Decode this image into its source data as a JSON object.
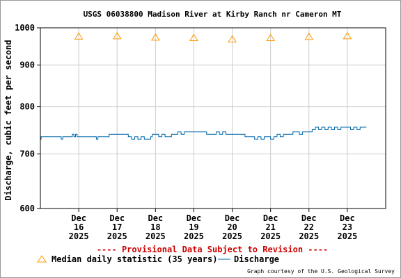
{
  "chart_data": {
    "type": "line",
    "title": "USGS 06038800 Madison River at Kirby Ranch nr Cameron MT",
    "ylabel": "Discharge, cubic feet per second",
    "xlabel": "",
    "y_scale": "log",
    "ylim": [
      600,
      1000
    ],
    "y_ticks": [
      {
        "value": 600,
        "label": "600"
      },
      {
        "value": 700,
        "label": "700"
      },
      {
        "value": 800,
        "label": "800"
      },
      {
        "value": 900,
        "label": "900"
      },
      {
        "value": 1000,
        "label": "1000"
      }
    ],
    "xlim": [
      "2025-12-15",
      "2025-12-24"
    ],
    "x_ticks": [
      {
        "date": "2025-12-16",
        "month": "Dec",
        "day": "16",
        "year": "2025"
      },
      {
        "date": "2025-12-17",
        "month": "Dec",
        "day": "17",
        "year": "2025"
      },
      {
        "date": "2025-12-18",
        "month": "Dec",
        "day": "18",
        "year": "2025"
      },
      {
        "date": "2025-12-19",
        "month": "Dec",
        "day": "19",
        "year": "2025"
      },
      {
        "date": "2025-12-20",
        "month": "Dec",
        "day": "20",
        "year": "2025"
      },
      {
        "date": "2025-12-21",
        "month": "Dec",
        "day": "21",
        "year": "2025"
      },
      {
        "date": "2025-12-22",
        "month": "Dec",
        "day": "22",
        "year": "2025"
      },
      {
        "date": "2025-12-23",
        "month": "Dec",
        "day": "23",
        "year": "2025"
      }
    ],
    "grid": true,
    "series": [
      {
        "name": "Median daily statistic (35 years)",
        "marker": "triangle",
        "color": "#ff9900",
        "points": [
          {
            "x": "2025-12-16",
            "y": 976
          },
          {
            "x": "2025-12-17",
            "y": 977
          },
          {
            "x": "2025-12-18",
            "y": 973
          },
          {
            "x": "2025-12-19",
            "y": 972
          },
          {
            "x": "2025-12-20",
            "y": 968
          },
          {
            "x": "2025-12-21",
            "y": 972
          },
          {
            "x": "2025-12-22",
            "y": 975
          },
          {
            "x": "2025-12-23",
            "y": 977
          }
        ]
      },
      {
        "name": "Discharge",
        "marker": "line",
        "color": "#0066aa",
        "points": [
          {
            "x": "2025-12-15 00:00",
            "y": 730
          },
          {
            "x": "2025-12-15 00:30",
            "y": 735
          },
          {
            "x": "2025-12-15 06:00",
            "y": 735
          },
          {
            "x": "2025-12-15 12:00",
            "y": 735
          },
          {
            "x": "2025-12-15 13:00",
            "y": 730
          },
          {
            "x": "2025-12-15 14:00",
            "y": 735
          },
          {
            "x": "2025-12-15 18:00",
            "y": 735
          },
          {
            "x": "2025-12-15 20:00",
            "y": 740
          },
          {
            "x": "2025-12-15 21:00",
            "y": 735
          },
          {
            "x": "2025-12-15 22:00",
            "y": 740
          },
          {
            "x": "2025-12-15 23:00",
            "y": 735
          },
          {
            "x": "2025-12-16 06:00",
            "y": 735
          },
          {
            "x": "2025-12-16 11:00",
            "y": 730
          },
          {
            "x": "2025-12-16 12:00",
            "y": 735
          },
          {
            "x": "2025-12-16 18:00",
            "y": 735
          },
          {
            "x": "2025-12-16 19:00",
            "y": 740
          },
          {
            "x": "2025-12-17 00:00",
            "y": 740
          },
          {
            "x": "2025-12-17 06:00",
            "y": 740
          },
          {
            "x": "2025-12-17 07:00",
            "y": 735
          },
          {
            "x": "2025-12-17 09:00",
            "y": 730
          },
          {
            "x": "2025-12-17 11:00",
            "y": 735
          },
          {
            "x": "2025-12-17 13:00",
            "y": 730
          },
          {
            "x": "2025-12-17 15:00",
            "y": 735
          },
          {
            "x": "2025-12-17 17:00",
            "y": 730
          },
          {
            "x": "2025-12-17 19:00",
            "y": 730
          },
          {
            "x": "2025-12-17 21:00",
            "y": 735
          },
          {
            "x": "2025-12-17 22:00",
            "y": 740
          },
          {
            "x": "2025-12-18 00:00",
            "y": 740
          },
          {
            "x": "2025-12-18 02:00",
            "y": 735
          },
          {
            "x": "2025-12-18 04:00",
            "y": 740
          },
          {
            "x": "2025-12-18 06:00",
            "y": 735
          },
          {
            "x": "2025-12-18 10:00",
            "y": 740
          },
          {
            "x": "2025-12-18 12:00",
            "y": 740
          },
          {
            "x": "2025-12-18 14:00",
            "y": 745
          },
          {
            "x": "2025-12-18 16:00",
            "y": 740
          },
          {
            "x": "2025-12-18 18:00",
            "y": 745
          },
          {
            "x": "2025-12-19 00:00",
            "y": 745
          },
          {
            "x": "2025-12-19 06:00",
            "y": 745
          },
          {
            "x": "2025-12-19 08:00",
            "y": 740
          },
          {
            "x": "2025-12-19 12:00",
            "y": 740
          },
          {
            "x": "2025-12-19 14:00",
            "y": 745
          },
          {
            "x": "2025-12-19 16:00",
            "y": 740
          },
          {
            "x": "2025-12-19 18:00",
            "y": 745
          },
          {
            "x": "2025-12-19 20:00",
            "y": 740
          },
          {
            "x": "2025-12-20 00:00",
            "y": 740
          },
          {
            "x": "2025-12-20 06:00",
            "y": 740
          },
          {
            "x": "2025-12-20 08:00",
            "y": 735
          },
          {
            "x": "2025-12-20 12:00",
            "y": 735
          },
          {
            "x": "2025-12-20 14:00",
            "y": 730
          },
          {
            "x": "2025-12-20 16:00",
            "y": 735
          },
          {
            "x": "2025-12-20 18:00",
            "y": 730
          },
          {
            "x": "2025-12-20 20:00",
            "y": 735
          },
          {
            "x": "2025-12-21 00:00",
            "y": 730
          },
          {
            "x": "2025-12-21 02:00",
            "y": 735
          },
          {
            "x": "2025-12-21 04:00",
            "y": 740
          },
          {
            "x": "2025-12-21 06:00",
            "y": 735
          },
          {
            "x": "2025-12-21 08:00",
            "y": 740
          },
          {
            "x": "2025-12-21 12:00",
            "y": 740
          },
          {
            "x": "2025-12-21 14:00",
            "y": 745
          },
          {
            "x": "2025-12-21 18:00",
            "y": 740
          },
          {
            "x": "2025-12-21 20:00",
            "y": 745
          },
          {
            "x": "2025-12-22 00:00",
            "y": 745
          },
          {
            "x": "2025-12-22 02:00",
            "y": 750
          },
          {
            "x": "2025-12-22 04:00",
            "y": 755
          },
          {
            "x": "2025-12-22 06:00",
            "y": 750
          },
          {
            "x": "2025-12-22 08:00",
            "y": 755
          },
          {
            "x": "2025-12-22 10:00",
            "y": 750
          },
          {
            "x": "2025-12-22 12:00",
            "y": 755
          },
          {
            "x": "2025-12-22 14:00",
            "y": 750
          },
          {
            "x": "2025-12-22 16:00",
            "y": 755
          },
          {
            "x": "2025-12-22 18:00",
            "y": 750
          },
          {
            "x": "2025-12-22 20:00",
            "y": 755
          },
          {
            "x": "2025-12-23 00:00",
            "y": 755
          },
          {
            "x": "2025-12-23 02:00",
            "y": 750
          },
          {
            "x": "2025-12-23 04:00",
            "y": 755
          },
          {
            "x": "2025-12-23 06:00",
            "y": 750
          },
          {
            "x": "2025-12-23 08:00",
            "y": 755
          },
          {
            "x": "2025-12-23 12:00",
            "y": 755
          }
        ]
      }
    ],
    "legend_placement": "bottom",
    "annotations": [
      "---- Provisional Data Subject to Revision ----",
      "Graph courtesy of the U.S. Geological Survey"
    ]
  }
}
